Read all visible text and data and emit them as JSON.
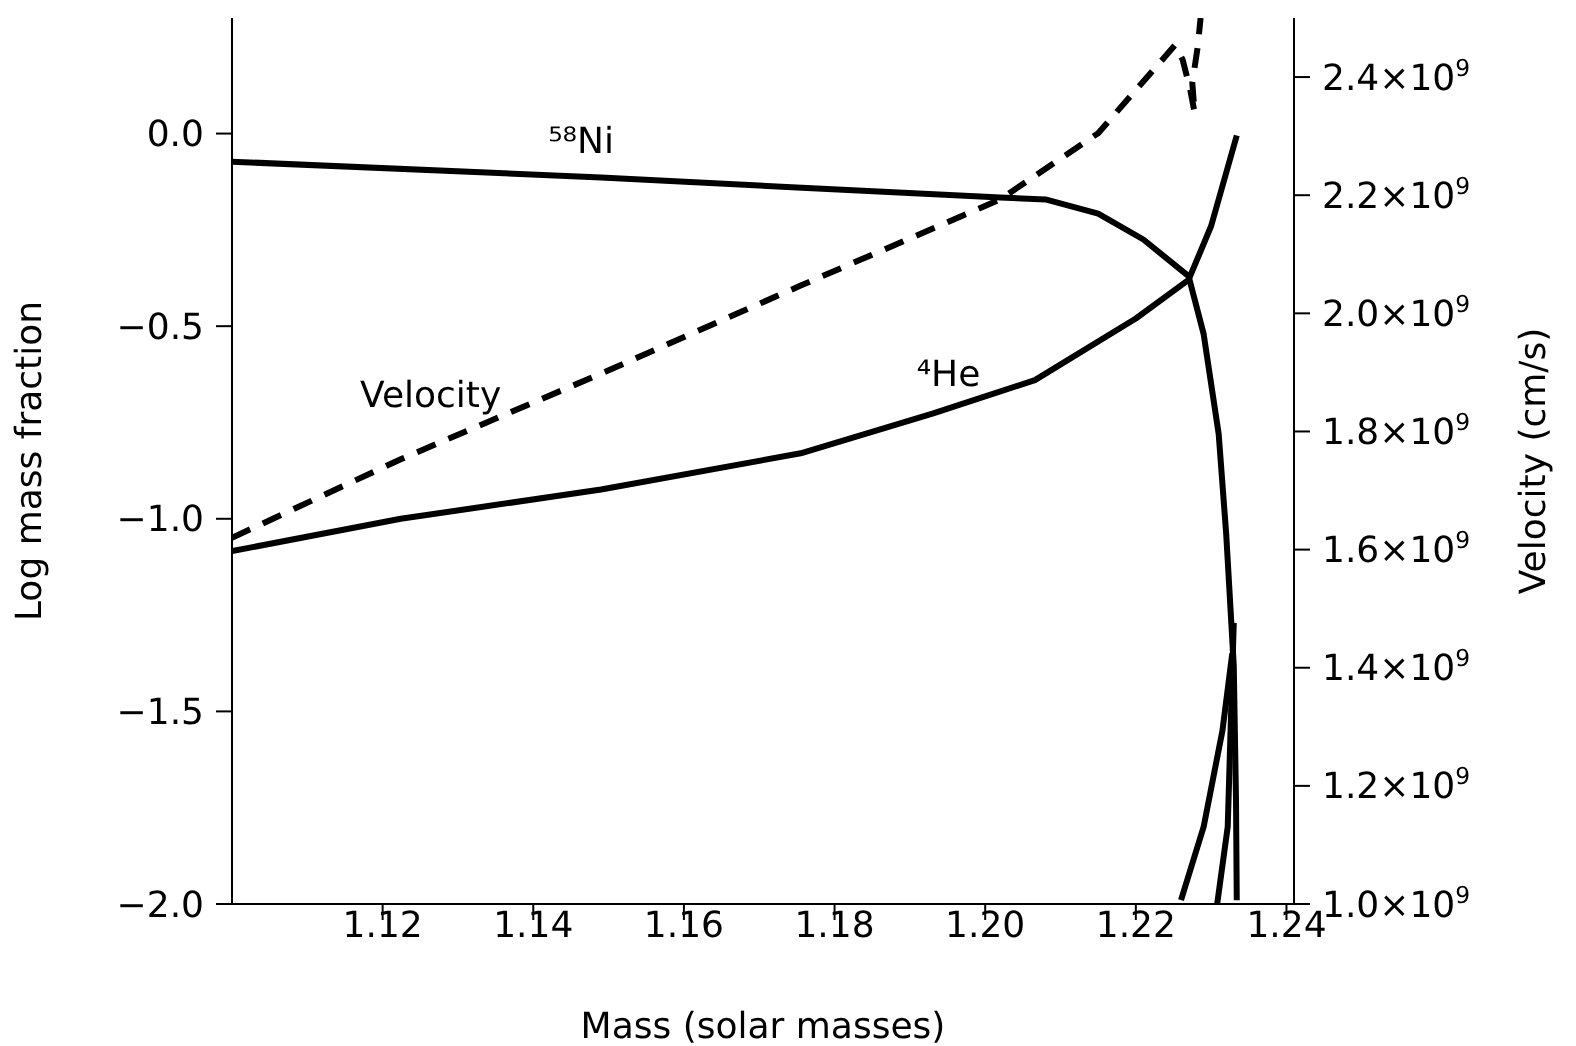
{
  "chart_data": {
    "type": "line",
    "xlabel": "Mass (solar masses)",
    "ylabel": "Log mass fraction",
    "y2label": "Velocity (cm/s)",
    "xlim": [
      1.1,
      1.241
    ],
    "xticks": [
      1.12,
      1.14,
      1.16,
      1.18,
      {
        "value": 1.2,
        "label": "1.20"
      },
      1.22,
      1.24
    ],
    "ylim": [
      -2.0,
      0.3
    ],
    "yticks": [
      {
        "value": 0,
        "label": "0.0"
      },
      {
        "value": -0.5,
        "label": "−0.5"
      },
      {
        "value": -1,
        "label": "−1.0"
      },
      {
        "value": -1.5,
        "label": "−1.5"
      },
      {
        "value": -2,
        "label": "−2.0"
      }
    ],
    "y2lim": [
      1000000000,
      2500000000
    ],
    "y2ticks": [
      {
        "value": 1000000000,
        "label": "1.0×10$^{9}$"
      },
      {
        "value": 1200000000,
        "label": "1.2×10$^{9}$"
      },
      {
        "value": 1400000000,
        "label": "1.4×10$^{9}$"
      },
      {
        "value": 1600000000,
        "label": "1.6×10$^{9}$"
      },
      {
        "value": 1800000000,
        "label": "1.8×10$^{9}$"
      },
      {
        "value": 2000000000,
        "label": "2.0×10$^{9}$"
      },
      {
        "value": 2200000000,
        "label": "2.2×10$^{9}$"
      },
      {
        "value": 2400000000,
        "label": "2.4×10$^{9}$"
      }
    ],
    "legend": false,
    "grid": false,
    "series": [
      {
        "name": "⁵⁸Ni",
        "color": "#000000",
        "line_style": "solid",
        "x": [
          1.1,
          1.149,
          1.175,
          1.202,
          1.208,
          1.215,
          1.221,
          1.227,
          1.229,
          1.231,
          1.232,
          1.233,
          1.2333,
          1.2334
        ],
        "values": [
          -0.073,
          -0.114,
          -0.14,
          -0.166,
          -0.171,
          -0.208,
          -0.275,
          -0.37,
          -0.52,
          -0.78,
          -1.04,
          -1.38,
          -1.73,
          -1.99
        ]
      },
      {
        "name": "⁴He",
        "color": "#000000",
        "line_style": "solid",
        "x": [
          1.1,
          1.1224,
          1.149,
          1.1755,
          1.193,
          1.2066,
          1.22,
          1.227,
          1.23,
          1.2334
        ],
        "values": [
          -1.084,
          -1.0,
          -0.924,
          -0.83,
          -0.727,
          -0.64,
          -0.48,
          -0.38,
          -0.24,
          -0.005
        ]
      },
      {
        "name": "Velocity",
        "color": "#000000",
        "line_style": "dashed",
        "axis": "y2",
        "x": [
          1.1,
          1.1224,
          1.149,
          1.1755,
          1.202,
          1.215,
          1.2252,
          1.2262,
          1.2272,
          1.2278,
          1.2275,
          1.2282,
          1.2286
        ],
        "values": [
          1620000000,
          1753000000,
          1898000000,
          2047000000,
          2193000000,
          2305000000,
          2454000000,
          2430000000,
          2380000000,
          2340000000,
          2390000000,
          2450000000,
          2500000000
        ]
      },
      {
        "color": "#000000",
        "line_style": "solid",
        "x": [
          1.226,
          1.229,
          1.2315,
          1.2328
        ],
        "values": [
          -1.99,
          -1.8,
          -1.55,
          -1.35
        ]
      },
      {
        "color": "#000000",
        "line_style": "solid",
        "x": [
          1.2308,
          1.2322,
          1.233
        ],
        "values": [
          -2.0,
          -1.8,
          -1.27
        ]
      }
    ]
  }
}
